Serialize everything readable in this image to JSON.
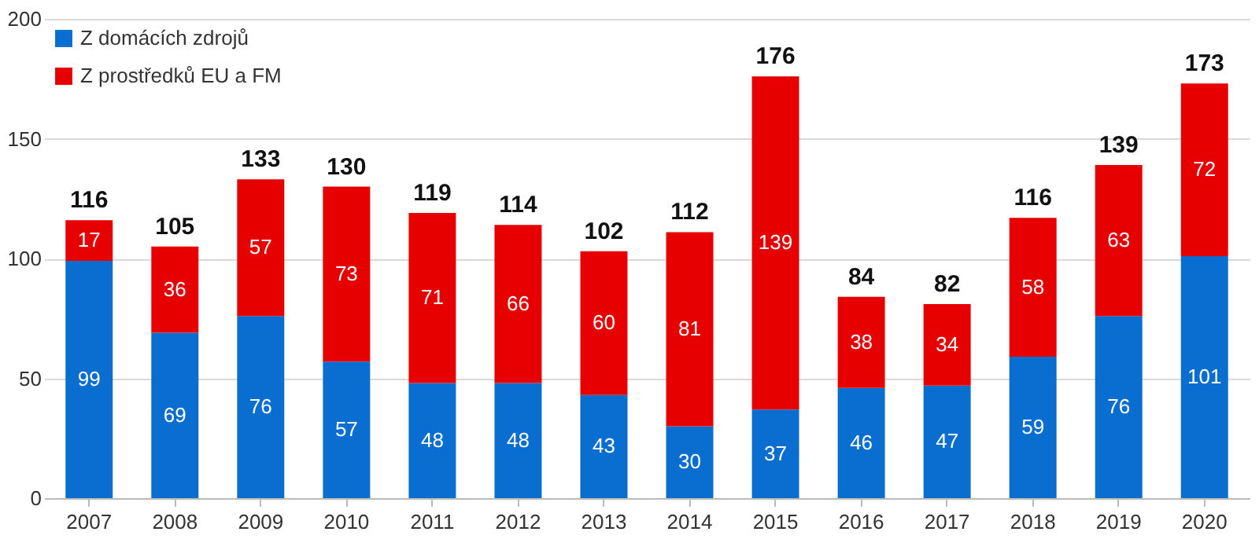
{
  "chart_data": {
    "type": "bar",
    "stacked": true,
    "categories": [
      "2007",
      "2008",
      "2009",
      "2010",
      "2011",
      "2012",
      "2013",
      "2014",
      "2015",
      "2016",
      "2017",
      "2018",
      "2019",
      "2020"
    ],
    "series": [
      {
        "name": "Z domácích zdrojů",
        "color": "#0a6ed1",
        "values": [
          99,
          69,
          76,
          57,
          48,
          48,
          43,
          30,
          37,
          46,
          47,
          59,
          76,
          101
        ]
      },
      {
        "name": "Z prostředků EU a FM",
        "color": "#e60000",
        "values": [
          17,
          36,
          57,
          73,
          71,
          66,
          60,
          81,
          139,
          38,
          34,
          58,
          63,
          72
        ]
      }
    ],
    "totals": [
      "116",
      "105",
      "133",
      "130",
      "119",
      "114",
      "102",
      "112",
      "176",
      "84",
      "82",
      "116",
      "139",
      "173"
    ],
    "data_labels": true,
    "ylim": [
      0,
      200
    ],
    "yticks": [
      0,
      50,
      100,
      150,
      200
    ],
    "grid": "y",
    "legend": "top left"
  }
}
